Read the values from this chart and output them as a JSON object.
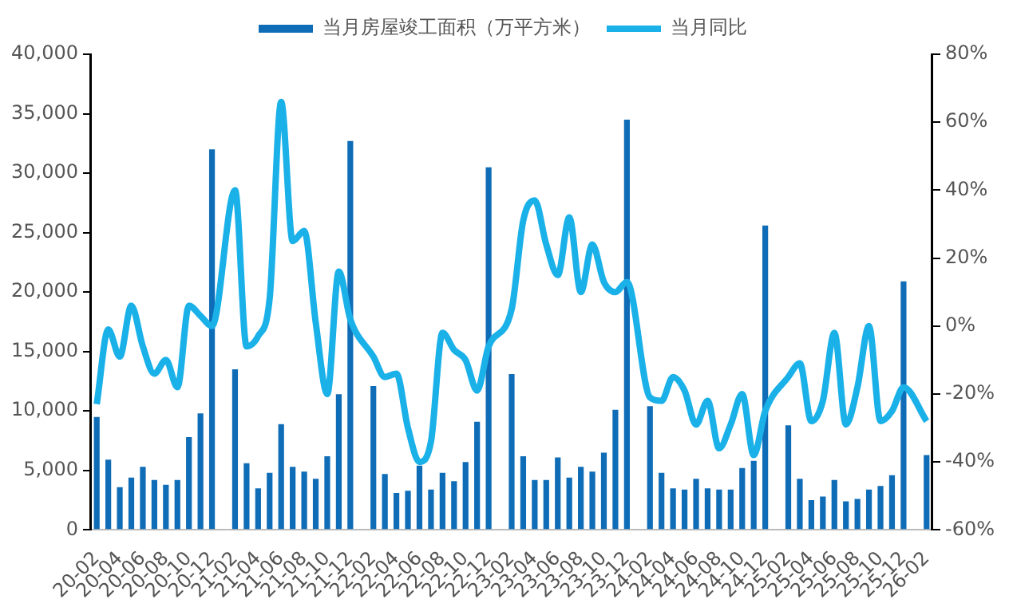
{
  "chart_data": {
    "type": "bar",
    "categories": [
      "20-02",
      null,
      "20-04",
      null,
      "20-06",
      null,
      "20-08",
      null,
      "20-10",
      null,
      "20-12",
      null,
      "21-02",
      null,
      "21-04",
      null,
      "21-06",
      null,
      "21-08",
      null,
      "21-10",
      null,
      "21-12",
      null,
      "22-02",
      null,
      "22-04",
      null,
      "22-06",
      null,
      "22-08",
      null,
      "22-10",
      null,
      "22-12",
      null,
      "23-02",
      null,
      "23-04",
      null,
      "23-06",
      null,
      "23-08",
      null,
      "23-10",
      null,
      "23-12",
      null,
      "24-02",
      null,
      "24-04",
      null,
      "24-06",
      null,
      "24-08",
      null,
      "24-10",
      null,
      "24-12",
      null,
      "25-02",
      null,
      "25-04",
      null,
      "25-06",
      null,
      "25-08",
      null,
      "25-10",
      null,
      "25-12",
      null,
      "26-02"
    ],
    "series": [
      {
        "name": "当月房屋竣工面积（万平方米）",
        "color": "#0f6cb6",
        "values": [
          9500,
          5900,
          3600,
          4400,
          5300,
          4200,
          3800,
          4200,
          7800,
          9800,
          32000,
          null,
          13500,
          5600,
          3500,
          4800,
          8900,
          5300,
          4900,
          4300,
          6200,
          11400,
          32700,
          null,
          12100,
          4700,
          3100,
          3300,
          5400,
          3400,
          4800,
          4100,
          5700,
          9100,
          30500,
          null,
          13100,
          6200,
          4200,
          4200,
          6100,
          4400,
          5300,
          4900,
          6500,
          10100,
          34500,
          null,
          10400,
          4800,
          3500,
          3400,
          4300,
          3500,
          3400,
          3400,
          5200,
          5800,
          25600,
          null,
          8800,
          4300,
          2500,
          2800,
          4200,
          2400,
          2600,
          3400,
          3700,
          4600,
          20900,
          null,
          6300
        ]
      },
      {
        "name": "当月同比",
        "type": "line",
        "axis": "y2",
        "color": "#1ab0e8",
        "values": [
          -23,
          -1,
          -9,
          6,
          -6,
          -14,
          -10,
          -18,
          6,
          3,
          0,
          null,
          40,
          -6,
          -3,
          8,
          66,
          25,
          28,
          1,
          -20,
          16,
          2,
          null,
          -9,
          -15,
          -14,
          -30,
          -40,
          -34,
          -2,
          -7,
          -10,
          -19,
          -6,
          null,
          5,
          31,
          37,
          24,
          15,
          32,
          10,
          24,
          13,
          10,
          13,
          null,
          -21,
          -22,
          -15,
          -19,
          -29,
          -22,
          -36,
          -29,
          -20,
          -38,
          -25,
          null,
          -15,
          -11,
          -28,
          -22,
          -2,
          -29,
          -18,
          0,
          -28,
          -25,
          -18,
          null,
          -28
        ]
      }
    ],
    "ylim": [
      0,
      40000
    ],
    "yticks": [
      0,
      {
        "value": 5000,
        "label": "5,000"
      },
      {
        "value": 10000,
        "label": "10,000"
      },
      {
        "value": 15000,
        "label": "15,000"
      },
      {
        "value": 20000,
        "label": "20,000"
      },
      {
        "value": 25000,
        "label": "25,000"
      },
      {
        "value": 30000,
        "label": "30,000"
      },
      {
        "value": 35000,
        "label": "35,000"
      },
      {
        "value": 40000,
        "label": "40,000"
      }
    ],
    "y2lim": [
      -60,
      80
    ],
    "y2ticks": [
      {
        "value": -60,
        "label": "-60%"
      },
      {
        "value": -40,
        "label": "-40%"
      },
      {
        "value": -20,
        "label": "-20%"
      },
      {
        "value": 0,
        "label": "0%"
      },
      {
        "value": 20,
        "label": "20%"
      },
      {
        "value": 40,
        "label": "40%"
      },
      {
        "value": 60,
        "label": "60%"
      },
      {
        "value": 80,
        "label": "80%"
      }
    ],
    "grid": false,
    "legend": "top"
  }
}
